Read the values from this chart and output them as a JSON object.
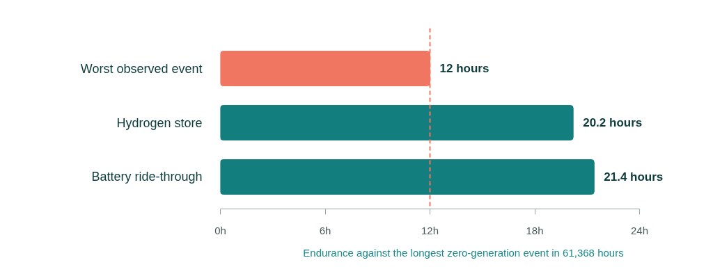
{
  "chart_data": {
    "type": "bar",
    "orientation": "horizontal",
    "categories": [
      "Worst observed event",
      "Hydrogen store",
      "Battery ride-through"
    ],
    "values": [
      12,
      20.2,
      21.4
    ],
    "colors": [
      "#f07662",
      "#137e7e",
      "#137e7e"
    ],
    "value_labels": [
      "12 hours",
      "20.2 hours",
      "21.4 hours"
    ],
    "xlim": [
      0,
      24
    ],
    "xticks": [
      {
        "value": 0,
        "label": "0h"
      },
      {
        "value": 6,
        "label": "6h"
      },
      {
        "value": 12,
        "label": "12h"
      },
      {
        "value": 18,
        "label": "18h"
      },
      {
        "value": 24,
        "label": "24h"
      }
    ],
    "xlabel": "Endurance against the longest zero-generation event in 61,368 hours",
    "ref_lines": [
      {
        "axis": "x",
        "value": 12,
        "label": null,
        "color": "#f07662",
        "line_style": "dashed"
      }
    ],
    "grid": false
  }
}
